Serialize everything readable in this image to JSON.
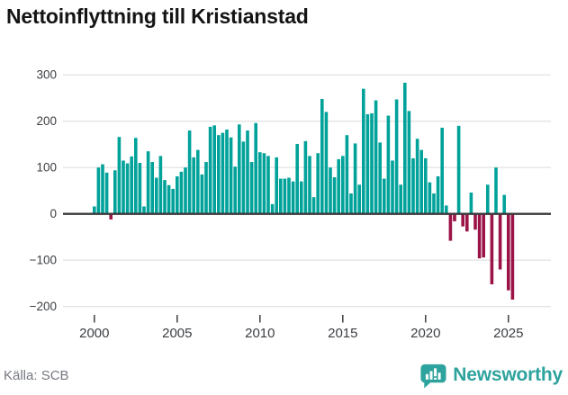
{
  "title": "Nettoinflyttning till Kristianstad",
  "footer": {
    "source": "Källa: SCB",
    "brand": "Newsworthy"
  },
  "colors": {
    "positive_bar": "#00A29A",
    "negative_bar": "#9B1347",
    "zero_axis": "#3A3A3A",
    "grid": "#E4E4E4",
    "tick": "#4A4A4A",
    "axis_label": "#3B3E42",
    "title_text": "#141414",
    "source_text": "#74787F",
    "brand_teal": "#2EA39D",
    "background": "#FFFFFF"
  },
  "chart_data": {
    "type": "bar",
    "title": "Nettoinflyttning till Kristianstad",
    "xlabel": "",
    "ylabel": "",
    "frequency": "quarterly",
    "start_period": "2000Q1",
    "end_period": "2025Q2",
    "values": [
      16,
      100,
      107,
      89,
      -12,
      94,
      166,
      115,
      109,
      124,
      164,
      110,
      16,
      135,
      112,
      78,
      125,
      73,
      62,
      54,
      81,
      91,
      100,
      180,
      122,
      138,
      85,
      112,
      188,
      191,
      170,
      175,
      182,
      165,
      102,
      193,
      156,
      180,
      112,
      196,
      133,
      131,
      125,
      21,
      122,
      76,
      76,
      78,
      70,
      151,
      70,
      157,
      125,
      36,
      131,
      248,
      220,
      100,
      79,
      118,
      125,
      170,
      44,
      152,
      63,
      270,
      215,
      217,
      245,
      154,
      76,
      212,
      115,
      247,
      63,
      283,
      222,
      120,
      162,
      138,
      120,
      68,
      44,
      81,
      186,
      18,
      -58,
      -16,
      190,
      -27,
      -38,
      46,
      -34,
      -96,
      -94,
      63,
      -152,
      100,
      -120,
      41,
      -165,
      -185
    ],
    "xticks": [
      2000,
      2005,
      2010,
      2015,
      2020,
      2025
    ],
    "xtick_labels": [
      "2000",
      "2005",
      "2010",
      "2015",
      "2020",
      "2025"
    ],
    "yticks": [
      300,
      200,
      100,
      0,
      -100,
      -200
    ],
    "ytick_labels": [
      "300",
      "200",
      "100",
      "0",
      "−100",
      "−200"
    ],
    "ylim": [
      -200,
      300
    ],
    "grid": "horizontal",
    "legend": "none"
  }
}
